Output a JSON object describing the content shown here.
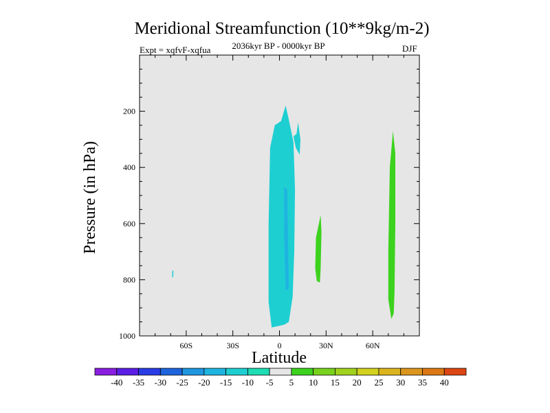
{
  "chart_data": {
    "type": "contour",
    "title": "Meridional Streamfunction (10**9kg/m-2)",
    "experiment_label": "Expt = xqfvF-xqfua",
    "period_label": "2036kyr BP - 0000kyr BP",
    "season_label": "DJF",
    "xlabel": "Latitude",
    "ylabel": "Pressure (in hPa)",
    "xlim": [
      -90,
      90
    ],
    "ylim": [
      1000,
      0
    ],
    "x_ticks": [
      {
        "value": -60,
        "label": "60S"
      },
      {
        "value": -30,
        "label": "30S"
      },
      {
        "value": 0,
        "label": "0"
      },
      {
        "value": 30,
        "label": "30N"
      },
      {
        "value": 60,
        "label": "60N"
      }
    ],
    "y_ticks": [
      {
        "value": 200,
        "label": "200"
      },
      {
        "value": 400,
        "label": "400"
      },
      {
        "value": 600,
        "label": "600"
      },
      {
        "value": 800,
        "label": "800"
      },
      {
        "value": 1000,
        "label": "1000"
      }
    ],
    "background_color": "#e6e6e6",
    "colorbar": {
      "levels": [
        "-40",
        "-35",
        "-30",
        "-25",
        "-20",
        "-15",
        "-10",
        "-5",
        "5",
        "10",
        "15",
        "20",
        "25",
        "30",
        "35",
        "40"
      ],
      "colors": [
        "#8a1ee0",
        "#5a1ee6",
        "#2a3ce6",
        "#1e64dc",
        "#1e96e0",
        "#1eb4e0",
        "#1ecfd2",
        "#1edcb4",
        "#e6e6e6",
        "#3cd21e",
        "#78d21e",
        "#a0d21e",
        "#d2d21e",
        "#dcb41e",
        "#dc961e",
        "#dc7814",
        "#dc4614"
      ]
    },
    "regions": [
      {
        "name": "negative-cell-equator",
        "color": "#1ecfd2",
        "points": [
          [
            -5,
            970
          ],
          [
            -7,
            880
          ],
          [
            -7,
            600
          ],
          [
            -6,
            330
          ],
          [
            -3,
            250
          ],
          [
            1,
            235
          ],
          [
            4,
            180
          ],
          [
            6,
            230
          ],
          [
            9,
            310
          ],
          [
            10,
            480
          ],
          [
            9.5,
            700
          ],
          [
            8.5,
            860
          ],
          [
            6,
            950
          ],
          [
            3,
            960
          ]
        ]
      },
      {
        "name": "negative-lobe-north",
        "color": "#1ecfd2",
        "points": [
          [
            9,
            290
          ],
          [
            11,
            280
          ],
          [
            12,
            240
          ],
          [
            13.5,
            300
          ],
          [
            13,
            355
          ],
          [
            10.5,
            330
          ]
        ]
      },
      {
        "name": "negative-core",
        "color": "#1eb4e0",
        "points": [
          [
            3,
            470
          ],
          [
            5,
            480
          ],
          [
            5.5,
            650
          ],
          [
            6,
            830
          ],
          [
            4,
            840
          ],
          [
            3,
            650
          ]
        ]
      },
      {
        "name": "positive-cell-30n",
        "color": "#3cd21e",
        "points": [
          [
            24,
            805
          ],
          [
            23,
            760
          ],
          [
            23.5,
            650
          ],
          [
            26.5,
            570
          ],
          [
            27,
            630
          ],
          [
            26.5,
            760
          ],
          [
            26,
            810
          ]
        ]
      },
      {
        "name": "positive-cell-70n",
        "color": "#3cd21e",
        "points": [
          [
            72,
            940
          ],
          [
            70,
            870
          ],
          [
            70,
            700
          ],
          [
            71,
            400
          ],
          [
            73,
            270
          ],
          [
            74.5,
            350
          ],
          [
            74.5,
            600
          ],
          [
            74,
            850
          ],
          [
            73.5,
            920
          ]
        ]
      },
      {
        "name": "negative-speck-southern",
        "color": "#1ecfd2",
        "points": [
          [
            -69,
            770
          ],
          [
            -68.3,
            765
          ],
          [
            -68.3,
            790
          ],
          [
            -69,
            792
          ]
        ]
      }
    ]
  }
}
